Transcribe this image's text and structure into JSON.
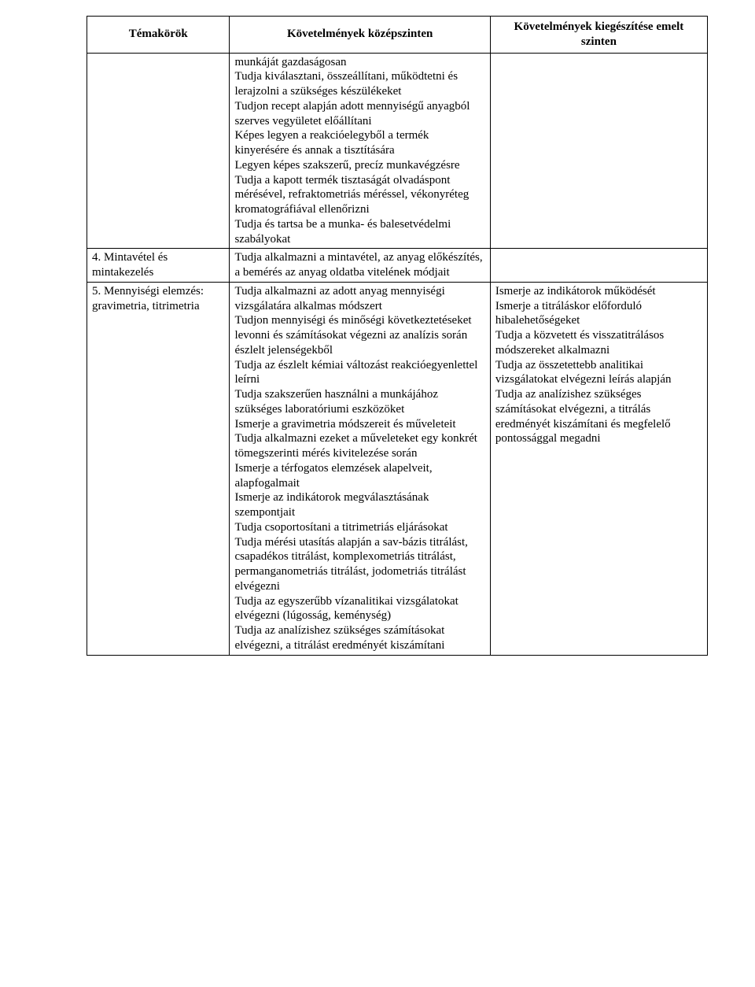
{
  "table": {
    "columns": [
      "Témakörök",
      "Követelmények középszinten",
      "Követelmények kiegészítése emelt szinten"
    ],
    "column_widths": [
      "23%",
      "42%",
      "35%"
    ],
    "border_color": "#000000",
    "background_color": "#ffffff",
    "text_color": "#000000",
    "font_family": "Times New Roman",
    "header_fontsize": 15,
    "body_fontsize": 15,
    "header_fontweight": "bold",
    "rows": [
      {
        "topic": "",
        "mid": "munkáját gazdaságosan\nTudja kiválasztani, összeállítani, működtetni és lerajzolni a szükséges készülékeket\nTudjon recept alapján adott mennyiségű anyagból szerves vegyületet előállítani\nKépes legyen a reakcióelegyből a termék kinyerésére és annak a tisztítására\nLegyen képes szakszerű, precíz munkavégzésre\nTudja a kapott termék tisztaságát olvadáspont mérésével, refraktometriás méréssel, vékonyréteg kromatográfiával ellenőrizni\nTudja és tartsa be a munka- és balesetvédelmi szabályokat",
        "high": ""
      },
      {
        "topic": " 4. Mintavétel és mintakezelés",
        "mid": " Tudja alkalmazni a mintavétel, az anyag előkészítés, a bemérés az anyag oldatba vitelének módjait",
        "high": ""
      },
      {
        "topic": " 5. Mennyiségi elemzés: gravimetria, titrimetria",
        "mid": " Tudja alkalmazni az adott anyag mennyiségi vizsgálatára alkalmas módszert\nTudjon mennyiségi és minőségi következtetéseket levonni és számításokat végezni az analízis során észlelt jelenségekből\nTudja az észlelt kémiai változást reakcióegyenlettel leírni\nTudja szakszerűen használni a munkájához szükséges laboratóriumi eszközöket\nIsmerje a gravimetria módszereit és műveleteit\nTudja alkalmazni ezeket a műveleteket egy konkrét tömegszerinti mérés kivitelezése során\nIsmerje a térfogatos elemzések alapelveit, alapfogalmait\nIsmerje az indikátorok megválasztásának szempontjait\nTudja csoportosítani a titrimetriás eljárásokat\nTudja mérési utasítás alapján a sav-bázis titrálást, csapadékos titrálást, komplexometriás titrálást, permanganometriás titrálást, jodometriás titrálást elvégezni\nTudja az egyszerűbb vízanalitikai vizsgálatokat elvégezni (lúgosság, keménység)\nTudja az analízishez szükséges számításokat elvégezni, a titrálást eredményét kiszámítani",
        "high": " Ismerje az indikátorok működését\nIsmerje a titráláskor előforduló hibalehetőségeket\nTudja a közvetett és visszatitrálásos módszereket alkalmazni\nTudja az összetettebb analitikai vizsgálatokat elvégezni leírás alapján\nTudja az analízishez szükséges számításokat elvégezni, a titrálás eredményét kiszámítani és megfelelő pontossággal megadni"
      }
    ]
  }
}
